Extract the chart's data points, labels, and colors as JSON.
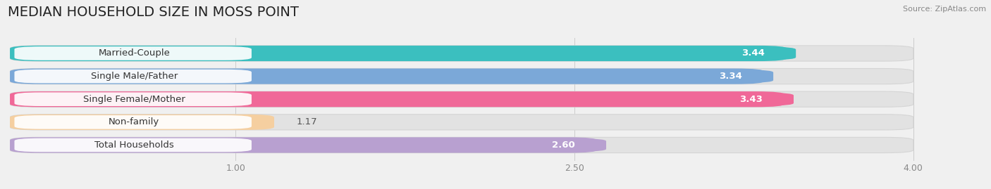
{
  "title": "MEDIAN HOUSEHOLD SIZE IN MOSS POINT",
  "source": "Source: ZipAtlas.com",
  "categories": [
    "Married-Couple",
    "Single Male/Father",
    "Single Female/Mother",
    "Non-family",
    "Total Households"
  ],
  "values": [
    3.44,
    3.34,
    3.43,
    1.17,
    2.6
  ],
  "bar_colors": [
    "#3bbfbf",
    "#7ba8d8",
    "#f06898",
    "#f5cfa0",
    "#b8a0d0"
  ],
  "label_pill_color": "#ffffff",
  "value_pill_colors": [
    "#3bbfbf",
    "#7ba8d8",
    "#f06898",
    "#f5cfa0",
    "#b8a0d0"
  ],
  "xlim": [
    0,
    4.3
  ],
  "xaxis_max": 4.0,
  "xticks": [
    1.0,
    2.5,
    4.0
  ],
  "xtick_labels": [
    "1.00",
    "2.50",
    "4.00"
  ],
  "title_fontsize": 14,
  "label_fontsize": 9.5,
  "value_fontsize": 9.5,
  "background_color": "#f0f0f0",
  "bar_bg_color": "#e2e2e2",
  "bar_bg_edge": "#d5d5d5"
}
